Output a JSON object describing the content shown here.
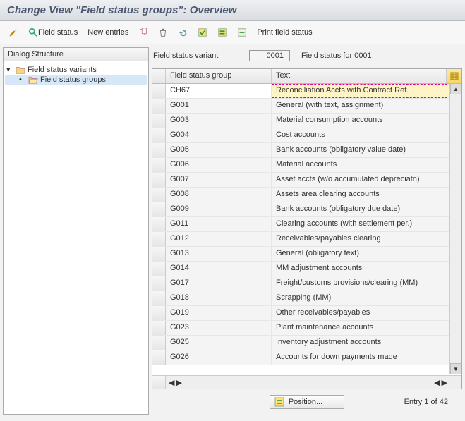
{
  "title": "Change View \"Field status groups\": Overview",
  "toolbar": {
    "field_status_label": "Field status",
    "new_entries_label": "New entries",
    "print_label": "Print field status"
  },
  "tree": {
    "header": "Dialog Structure",
    "root_label": "Field status variants",
    "child_label": "Field status groups"
  },
  "form": {
    "variant_label": "Field status variant",
    "variant_value": "0001",
    "variant_desc": "Field status for 0001"
  },
  "grid": {
    "col1_header": "Field status group",
    "col2_header": "Text",
    "rows": [
      {
        "g": "CH67",
        "t": "Reconciliation Accts with Contract Ref.",
        "editing": true
      },
      {
        "g": "G001",
        "t": "General (with text, assignment)"
      },
      {
        "g": "G003",
        "t": "Material consumption accounts"
      },
      {
        "g": "G004",
        "t": "Cost accounts"
      },
      {
        "g": "G005",
        "t": "Bank accounts (obligatory value date)"
      },
      {
        "g": "G006",
        "t": "Material accounts"
      },
      {
        "g": "G007",
        "t": "Asset accts (w/o accumulated depreciatn)"
      },
      {
        "g": "G008",
        "t": "Assets area clearing accounts"
      },
      {
        "g": "G009",
        "t": "Bank accounts (obligatory due date)"
      },
      {
        "g": "G011",
        "t": "Clearing accounts (with settlement per.)"
      },
      {
        "g": "G012",
        "t": "Receivables/payables clearing"
      },
      {
        "g": "G013",
        "t": "General (obligatory text)"
      },
      {
        "g": "G014",
        "t": "MM adjustment accounts"
      },
      {
        "g": "G017",
        "t": "Freight/customs provisions/clearing (MM)"
      },
      {
        "g": "G018",
        "t": "Scrapping (MM)"
      },
      {
        "g": "G019",
        "t": "Other receivables/payables"
      },
      {
        "g": "G023",
        "t": "Plant maintenance accounts"
      },
      {
        "g": "G025",
        "t": "Inventory adjustment accounts"
      },
      {
        "g": "G026",
        "t": "Accounts for down payments made"
      }
    ]
  },
  "footer": {
    "position_label": "Position...",
    "entry_label": "Entry 1 of 42"
  },
  "colors": {
    "highlight_bg": "#fff4c6",
    "toolbar_icon_yellow": "#f6c244",
    "folder_closed": "#f6d77a",
    "folder_open": "#f6d77a"
  }
}
